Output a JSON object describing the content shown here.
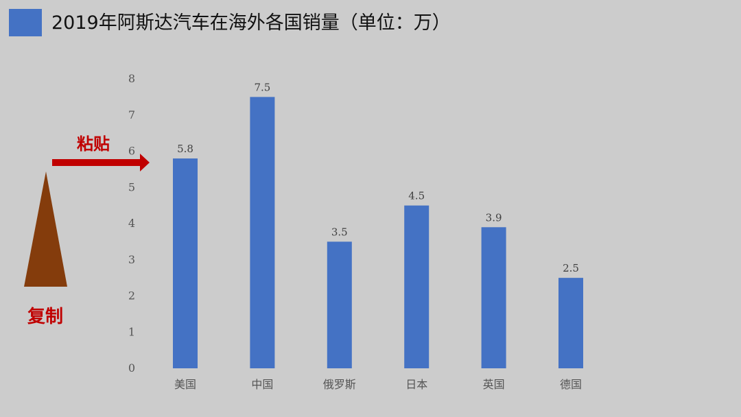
{
  "slide": {
    "title": "2019年阿斯达汽车在海外各国销量（单位：万）"
  },
  "annotations": {
    "paste": "粘贴",
    "copy": "复制",
    "arrow_color": "#c00000",
    "triangle_color": "#843c0c"
  },
  "chart_data": {
    "type": "bar",
    "categories": [
      "美国",
      "中国",
      "俄罗斯",
      "日本",
      "英国",
      "德国"
    ],
    "values": [
      5.8,
      7.5,
      3.5,
      4.5,
      3.9,
      2.5
    ],
    "yticks": [
      "0",
      "1",
      "2",
      "3",
      "4",
      "5",
      "6",
      "7",
      "8"
    ],
    "ylim": [
      0,
      8
    ],
    "bar_color": "#4472c4",
    "data_labels": true,
    "grid": false,
    "title": "",
    "xlabel": "",
    "ylabel": ""
  }
}
